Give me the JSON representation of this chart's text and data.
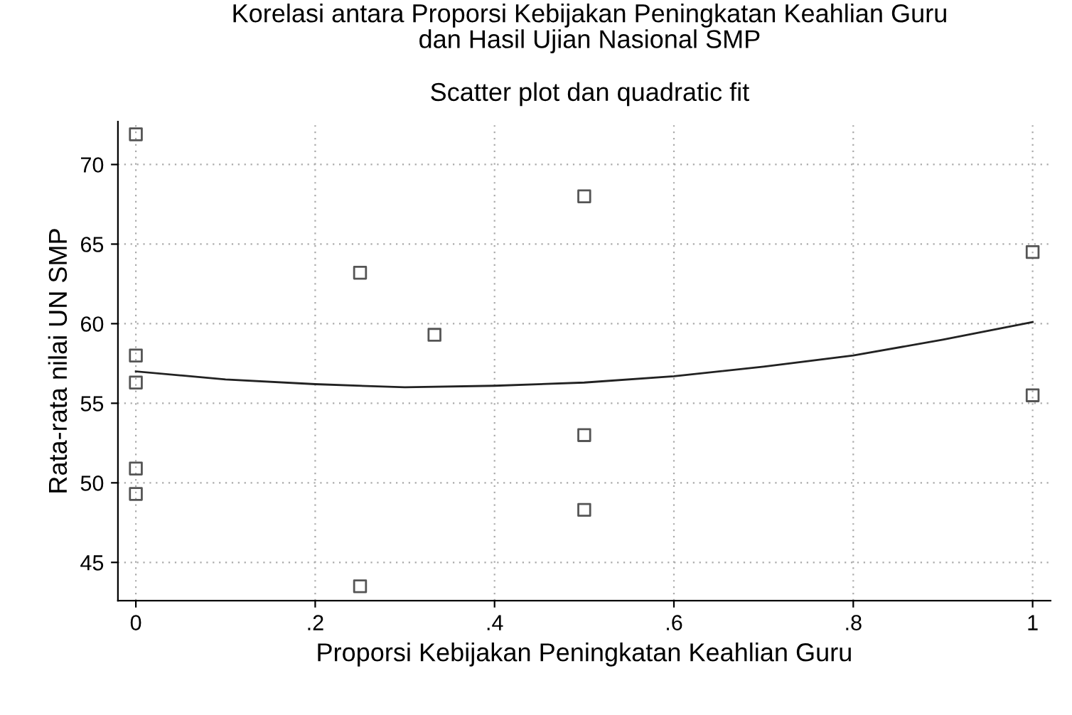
{
  "chart_data": {
    "type": "scatter",
    "title": "Korelasi antara Proporsi Kebijakan Peningkatan Keahlian Guru\ndan Hasil Ujian Nasional SMP",
    "subtitle": "Scatter plot dan quadratic fit",
    "xlabel": "Proporsi Kebijakan Peningkatan Keahlian Guru",
    "ylabel": "Rata-rata nilai UN SMP",
    "series": [
      {
        "color": "#555555",
        "marker": "square",
        "x": [
          0,
          0,
          0,
          0,
          0,
          0.25,
          0.25,
          0.333,
          0.5,
          0.5,
          0.5,
          1,
          1
        ],
        "values": [
          71.9,
          58.0,
          56.3,
          50.9,
          49.3,
          63.2,
          43.5,
          59.3,
          68.0,
          53.0,
          48.3,
          64.5,
          55.5
        ]
      },
      {
        "type": "line",
        "color": "#222222",
        "marker": "none",
        "x": [
          0,
          0.1,
          0.2,
          0.3,
          0.4,
          0.5,
          0.6,
          0.7,
          0.8,
          0.9,
          1
        ],
        "values": [
          57.0,
          56.5,
          56.2,
          56.0,
          56.1,
          56.3,
          56.7,
          57.3,
          58.0,
          59.0,
          60.1
        ]
      }
    ],
    "xlim": [
      -0.02,
      1.02
    ],
    "ylim": [
      42.6,
      72.7
    ],
    "xticks": [
      {
        "value": 0,
        "label": "0"
      },
      {
        "value": 0.2,
        "label": ".2"
      },
      {
        "value": 0.4,
        "label": ".4"
      },
      {
        "value": 0.6,
        "label": ".6"
      },
      {
        "value": 0.8,
        "label": ".8"
      },
      {
        "value": 1,
        "label": "1"
      }
    ],
    "yticks": [
      45,
      50,
      55,
      60,
      65,
      70
    ],
    "grid": true,
    "legend": false
  }
}
